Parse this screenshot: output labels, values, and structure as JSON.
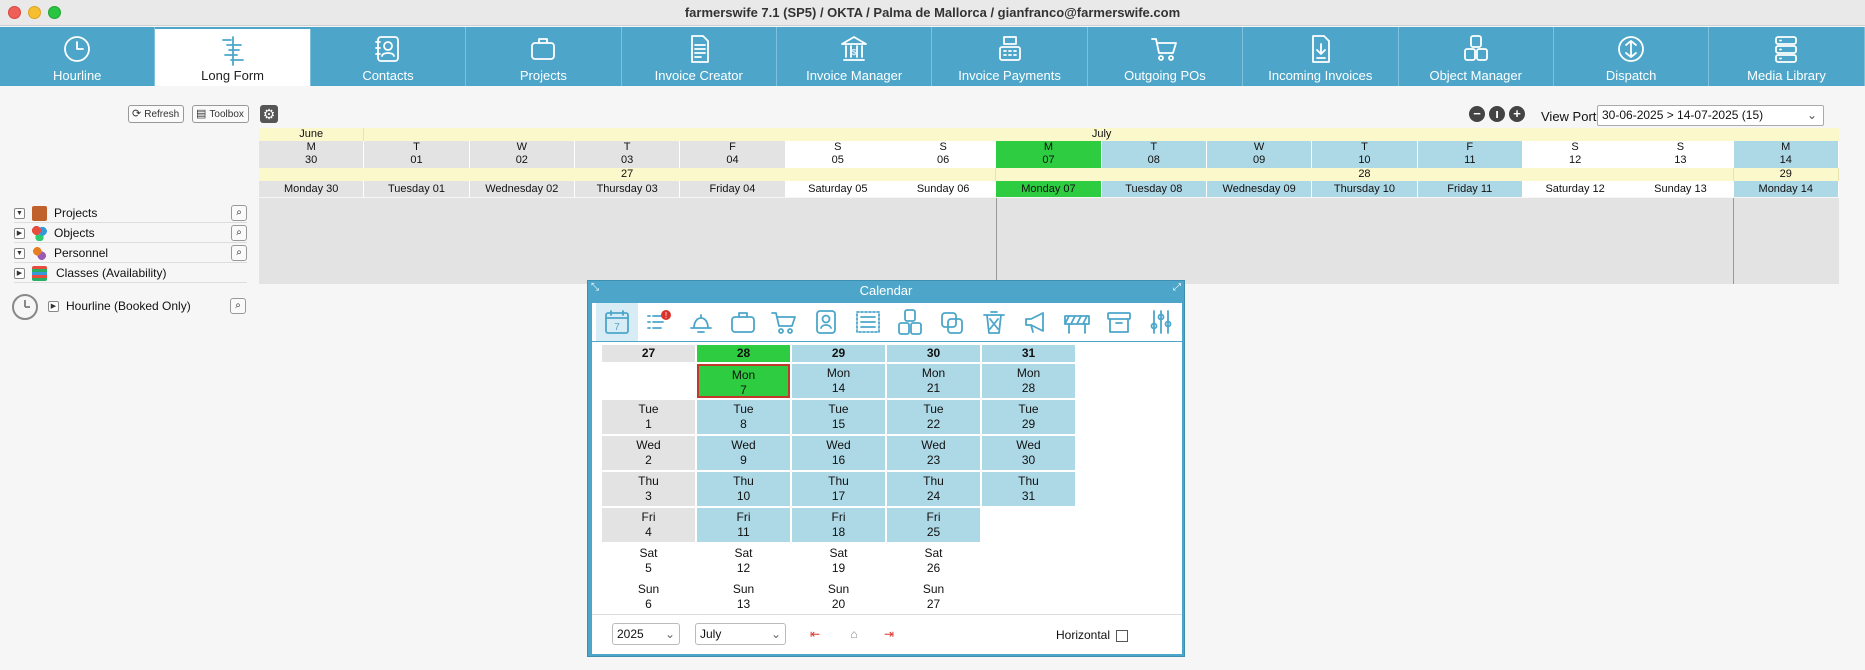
{
  "window": {
    "title": "farmerswife 7.1 (SP5)   / OKTA / Palma de Mallorca / gianfranco@farmerswife.com"
  },
  "nav": [
    {
      "label": "Hourline",
      "icon": "clock-icon"
    },
    {
      "label": "Long Form",
      "icon": "gantt-icon"
    },
    {
      "label": "Contacts",
      "icon": "contacts-icon"
    },
    {
      "label": "Projects",
      "icon": "briefcase-icon"
    },
    {
      "label": "Invoice Creator",
      "icon": "document-icon"
    },
    {
      "label": "Invoice Manager",
      "icon": "bank-icon"
    },
    {
      "label": "Invoice Payments",
      "icon": "register-icon"
    },
    {
      "label": "Outgoing POs",
      "icon": "cart-icon"
    },
    {
      "label": "Incoming Invoices",
      "icon": "download-doc-icon"
    },
    {
      "label": "Object Manager",
      "icon": "objects-icon"
    },
    {
      "label": "Dispatch",
      "icon": "dispatch-icon"
    },
    {
      "label": "Media Library",
      "icon": "server-icon"
    }
  ],
  "toolbar": {
    "refresh": "Refresh",
    "toolbox": "Toolbox",
    "viewport_label": "View Port:",
    "viewport_value": "30-06-2025 > 14-07-2025 (15)"
  },
  "timeline": {
    "months": [
      "June",
      "July"
    ],
    "days": [
      {
        "letter": "M",
        "num": "30",
        "name": "Monday 30",
        "kind": "gray"
      },
      {
        "letter": "T",
        "num": "01",
        "name": "Tuesday 01",
        "kind": "gray"
      },
      {
        "letter": "W",
        "num": "02",
        "name": "Wednesday 02",
        "kind": "gray"
      },
      {
        "letter": "T",
        "num": "03",
        "name": "Thursday 03",
        "kind": "gray"
      },
      {
        "letter": "F",
        "num": "04",
        "name": "Friday 04",
        "kind": "gray"
      },
      {
        "letter": "S",
        "num": "05",
        "name": "Saturday 05",
        "kind": "white"
      },
      {
        "letter": "S",
        "num": "06",
        "name": "Sunday 06",
        "kind": "white"
      },
      {
        "letter": "M",
        "num": "07",
        "name": "Monday 07",
        "kind": "green"
      },
      {
        "letter": "T",
        "num": "08",
        "name": "Tuesday 08",
        "kind": "blue"
      },
      {
        "letter": "W",
        "num": "09",
        "name": "Wednesday 09",
        "kind": "blue"
      },
      {
        "letter": "T",
        "num": "10",
        "name": "Thursday 10",
        "kind": "blue"
      },
      {
        "letter": "F",
        "num": "11",
        "name": "Friday 11",
        "kind": "blue"
      },
      {
        "letter": "S",
        "num": "12",
        "name": "Saturday 12",
        "kind": "white"
      },
      {
        "letter": "S",
        "num": "13",
        "name": "Sunday 13",
        "kind": "white"
      },
      {
        "letter": "M",
        "num": "14",
        "name": "Monday 14",
        "kind": "blue"
      }
    ],
    "weeks": [
      "27",
      "28",
      "29"
    ]
  },
  "tree": [
    {
      "label": "Projects",
      "expanded": true,
      "search": true
    },
    {
      "label": "Objects",
      "expanded": false,
      "search": true
    },
    {
      "label": "Personnel",
      "expanded": true,
      "search": true
    },
    {
      "label": "Classes (Availability)",
      "expanded": false,
      "search": false
    }
  ],
  "hourline_booked": "Hourline (Booked Only)",
  "calendar": {
    "title": "Calendar",
    "weeks": [
      "27",
      "28",
      "29",
      "30",
      "31"
    ],
    "cells": [
      [
        null,
        {
          "d": "Mon",
          "n": "7",
          "k": "today"
        },
        {
          "d": "Mon",
          "n": "14",
          "k": "blue"
        },
        {
          "d": "Mon",
          "n": "21",
          "k": "blue"
        },
        {
          "d": "Mon",
          "n": "28",
          "k": "blue"
        }
      ],
      [
        {
          "d": "Tue",
          "n": "1",
          "k": "gray"
        },
        {
          "d": "Tue",
          "n": "8",
          "k": "blue"
        },
        {
          "d": "Tue",
          "n": "15",
          "k": "blue"
        },
        {
          "d": "Tue",
          "n": "22",
          "k": "blue"
        },
        {
          "d": "Tue",
          "n": "29",
          "k": "blue"
        }
      ],
      [
        {
          "d": "Wed",
          "n": "2",
          "k": "gray"
        },
        {
          "d": "Wed",
          "n": "9",
          "k": "blue"
        },
        {
          "d": "Wed",
          "n": "16",
          "k": "blue"
        },
        {
          "d": "Wed",
          "n": "23",
          "k": "blue"
        },
        {
          "d": "Wed",
          "n": "30",
          "k": "blue"
        }
      ],
      [
        {
          "d": "Thu",
          "n": "3",
          "k": "gray"
        },
        {
          "d": "Thu",
          "n": "10",
          "k": "blue"
        },
        {
          "d": "Thu",
          "n": "17",
          "k": "blue"
        },
        {
          "d": "Thu",
          "n": "24",
          "k": "blue"
        },
        {
          "d": "Thu",
          "n": "31",
          "k": "blue"
        }
      ],
      [
        {
          "d": "Fri",
          "n": "4",
          "k": "gray"
        },
        {
          "d": "Fri",
          "n": "11",
          "k": "blue"
        },
        {
          "d": "Fri",
          "n": "18",
          "k": "blue"
        },
        {
          "d": "Fri",
          "n": "25",
          "k": "blue"
        },
        null
      ],
      [
        {
          "d": "Sat",
          "n": "5",
          "k": "white"
        },
        {
          "d": "Sat",
          "n": "12",
          "k": "white"
        },
        {
          "d": "Sat",
          "n": "19",
          "k": "white"
        },
        {
          "d": "Sat",
          "n": "26",
          "k": "white"
        },
        null
      ],
      [
        {
          "d": "Sun",
          "n": "6",
          "k": "white"
        },
        {
          "d": "Sun",
          "n": "13",
          "k": "white"
        },
        {
          "d": "Sun",
          "n": "20",
          "k": "white"
        },
        {
          "d": "Sun",
          "n": "27",
          "k": "white"
        },
        null
      ]
    ],
    "year": "2025",
    "month": "July",
    "horizontal_label": "Horizontal",
    "tools": [
      "calendar-icon",
      "tasks-alert-icon",
      "bell-icon",
      "briefcase-icon",
      "cart-icon",
      "contacts-icon",
      "list-icon",
      "objects-icon",
      "copy-icon",
      "trash-icon",
      "megaphone-icon",
      "barrier-icon",
      "archive-icon",
      "sliders-icon"
    ]
  },
  "colors": {
    "accent": "#4da6c9",
    "today": "#2ecc40",
    "booked": "#add8e6",
    "past": "#e3e3e3",
    "week_band": "#fbf8cc"
  }
}
